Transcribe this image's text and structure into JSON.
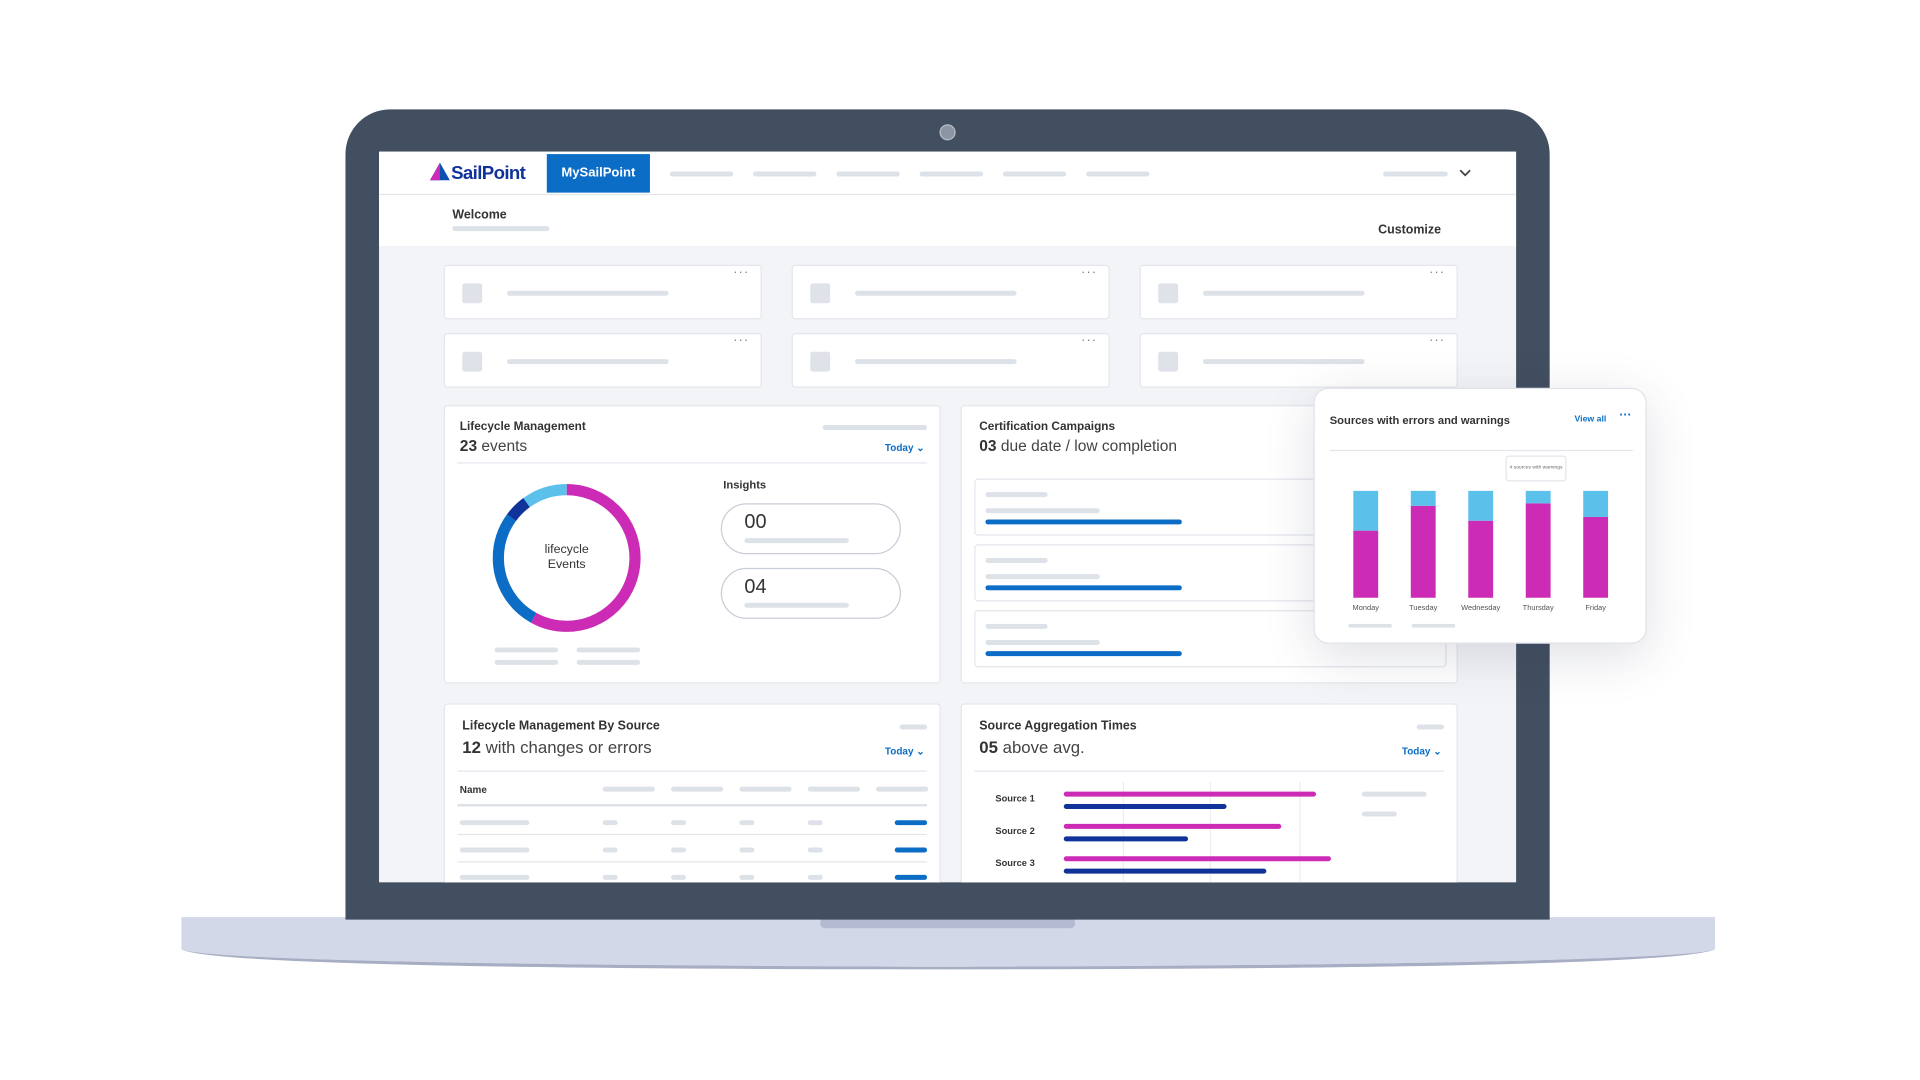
{
  "nav": {
    "logo": "SailPoint",
    "active_tab": "MySailPoint"
  },
  "header": {
    "title": "Welcome",
    "action": "Customize"
  },
  "lifecycle": {
    "title": "Lifecycle Management",
    "count": "23",
    "summary": "events",
    "filter": "Today",
    "donut_label": [
      "lifecycle",
      "Events"
    ],
    "donut": [
      {
        "color": "#cc2bb5",
        "value": 58
      },
      {
        "color": "#0b6dc6",
        "value": 27
      },
      {
        "color": "#10339a",
        "value": 5
      },
      {
        "color": "#5bc0ea",
        "value": 10
      }
    ],
    "insights_title": "Insights",
    "insights": [
      "00",
      "04"
    ]
  },
  "certification": {
    "title": "Certification Campaigns",
    "count": "03",
    "summary": "due date / low completion"
  },
  "by_source": {
    "title": "Lifecycle Management By Source",
    "count": "12",
    "summary": "with changes or errors",
    "filter": "Today",
    "column": "Name"
  },
  "aggregation": {
    "title": "Source Aggregation Times",
    "count": "05",
    "summary": "above avg.",
    "filter": "Today",
    "categories": [
      "Source 1",
      "Source 2",
      "Source 3"
    ],
    "series": [
      {
        "color": "#cc2bb5",
        "values": [
          203,
          175,
          215
        ]
      },
      {
        "color": "#10339a",
        "values": [
          131,
          100,
          163
        ]
      }
    ]
  },
  "popup": {
    "title": "Sources with errors and warnings",
    "action": "View all",
    "tooltip": "4 sources with warnings",
    "categories": [
      "Monday",
      "Tuesday",
      "Wednesday",
      "Thursday",
      "Friday"
    ],
    "series": [
      {
        "color": "#cc2bb5",
        "values": [
          54,
          74,
          62,
          76,
          65
        ]
      },
      {
        "color": "#5bc0ea",
        "values": [
          32,
          12,
          24,
          10,
          21
        ]
      }
    ]
  }
}
